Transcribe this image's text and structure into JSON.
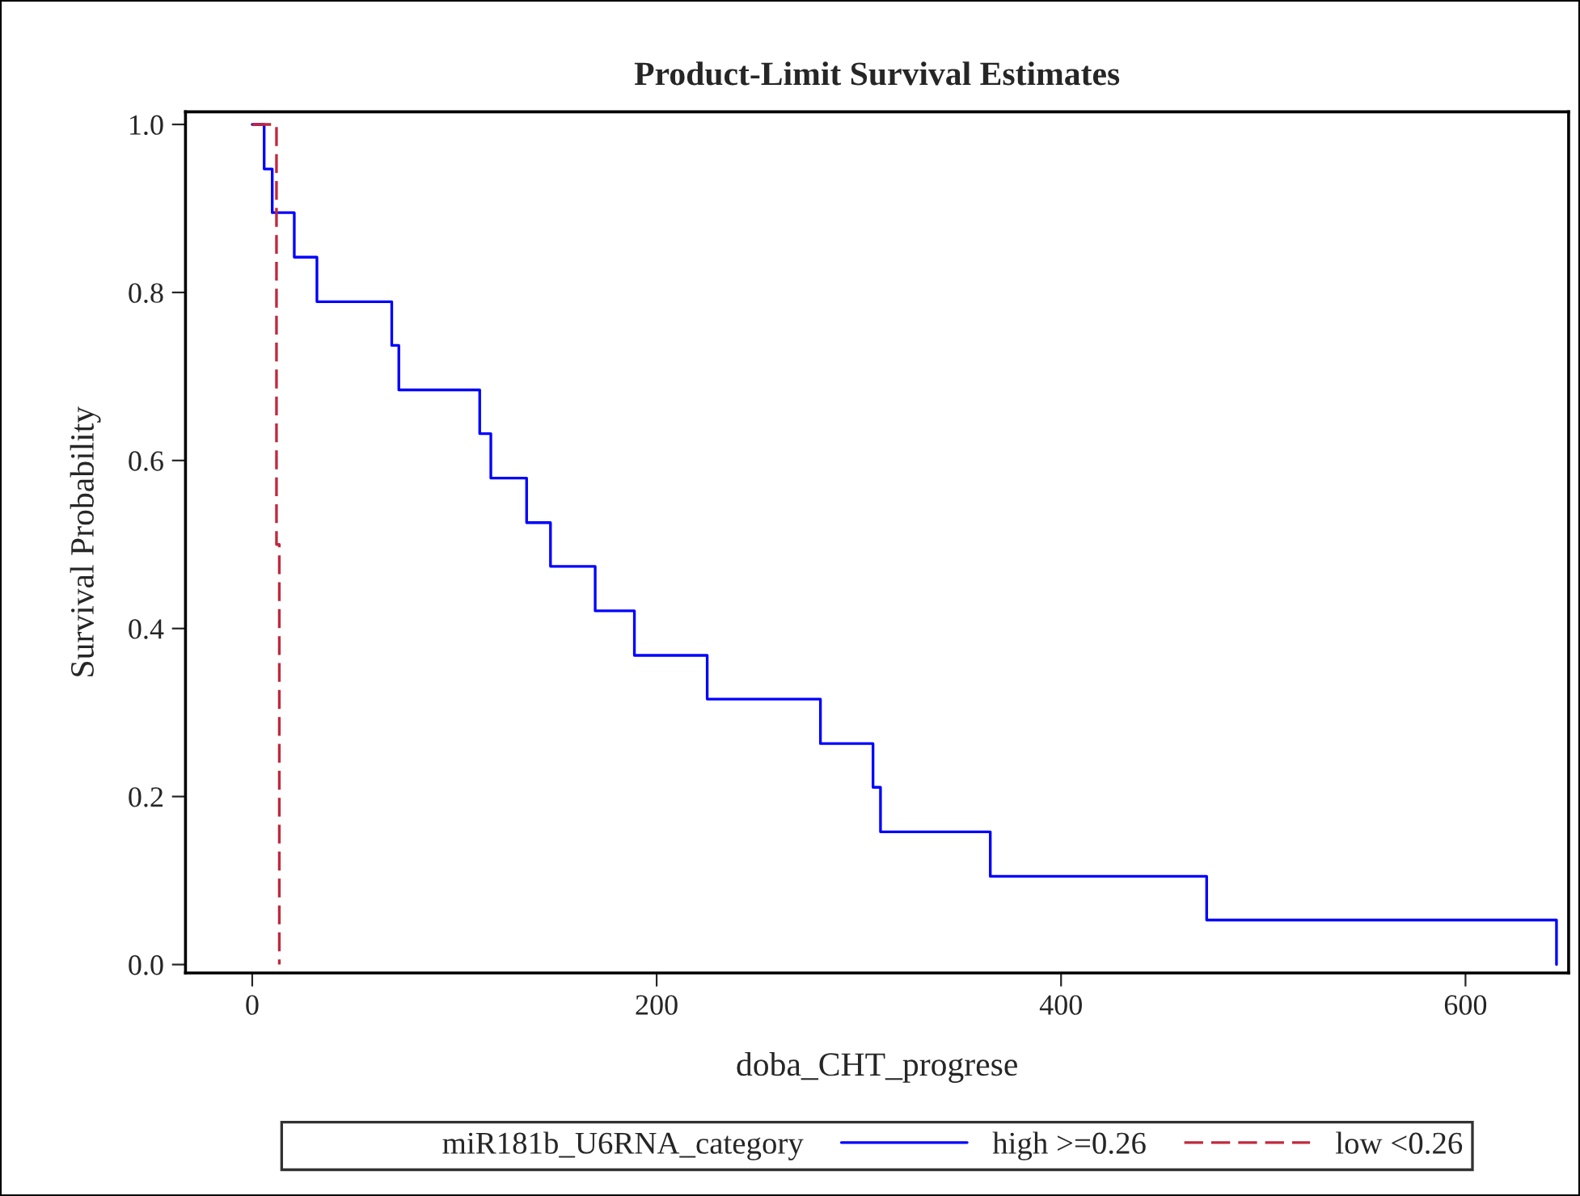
{
  "chart_data": {
    "type": "step",
    "title": "Product-Limit Survival Estimates",
    "xlabel": "doba_CHT_progrese",
    "ylabel": "Survival Probability",
    "legend_title": "miR181b_U6RNA_category",
    "series": [
      {
        "name": "high >=0.26",
        "color": "#0000ff",
        "line_style": "solid",
        "x": [
          0,
          5.9,
          9.9,
          20.8,
          32,
          69,
          72.5,
          112.5,
          118,
          135.7,
          147.5,
          169.6,
          189,
          225,
          281,
          307,
          310.7,
          365,
          472,
          645
        ],
        "values": [
          1,
          0.947,
          0.895,
          0.842,
          0.789,
          0.737,
          0.684,
          0.632,
          0.579,
          0.526,
          0.474,
          0.421,
          0.368,
          0.316,
          0.263,
          0.211,
          0.158,
          0.105,
          0.053,
          0
        ]
      },
      {
        "name": "low <0.26",
        "color": "#c0283c",
        "line_style": "dashed",
        "x": [
          0,
          12,
          13.4
        ],
        "values": [
          1,
          0.5,
          0
        ]
      }
    ],
    "xlim": [
      -33,
      651
    ],
    "ylim": [
      -0.01,
      1.015
    ],
    "xticks": [
      0,
      200,
      400,
      600
    ],
    "yticks": [
      {
        "value": 0,
        "label": "0.0"
      },
      0.2,
      0.4,
      0.6,
      0.8,
      {
        "value": 1,
        "label": "1.0"
      }
    ],
    "grid": false,
    "legend": "bottom"
  }
}
